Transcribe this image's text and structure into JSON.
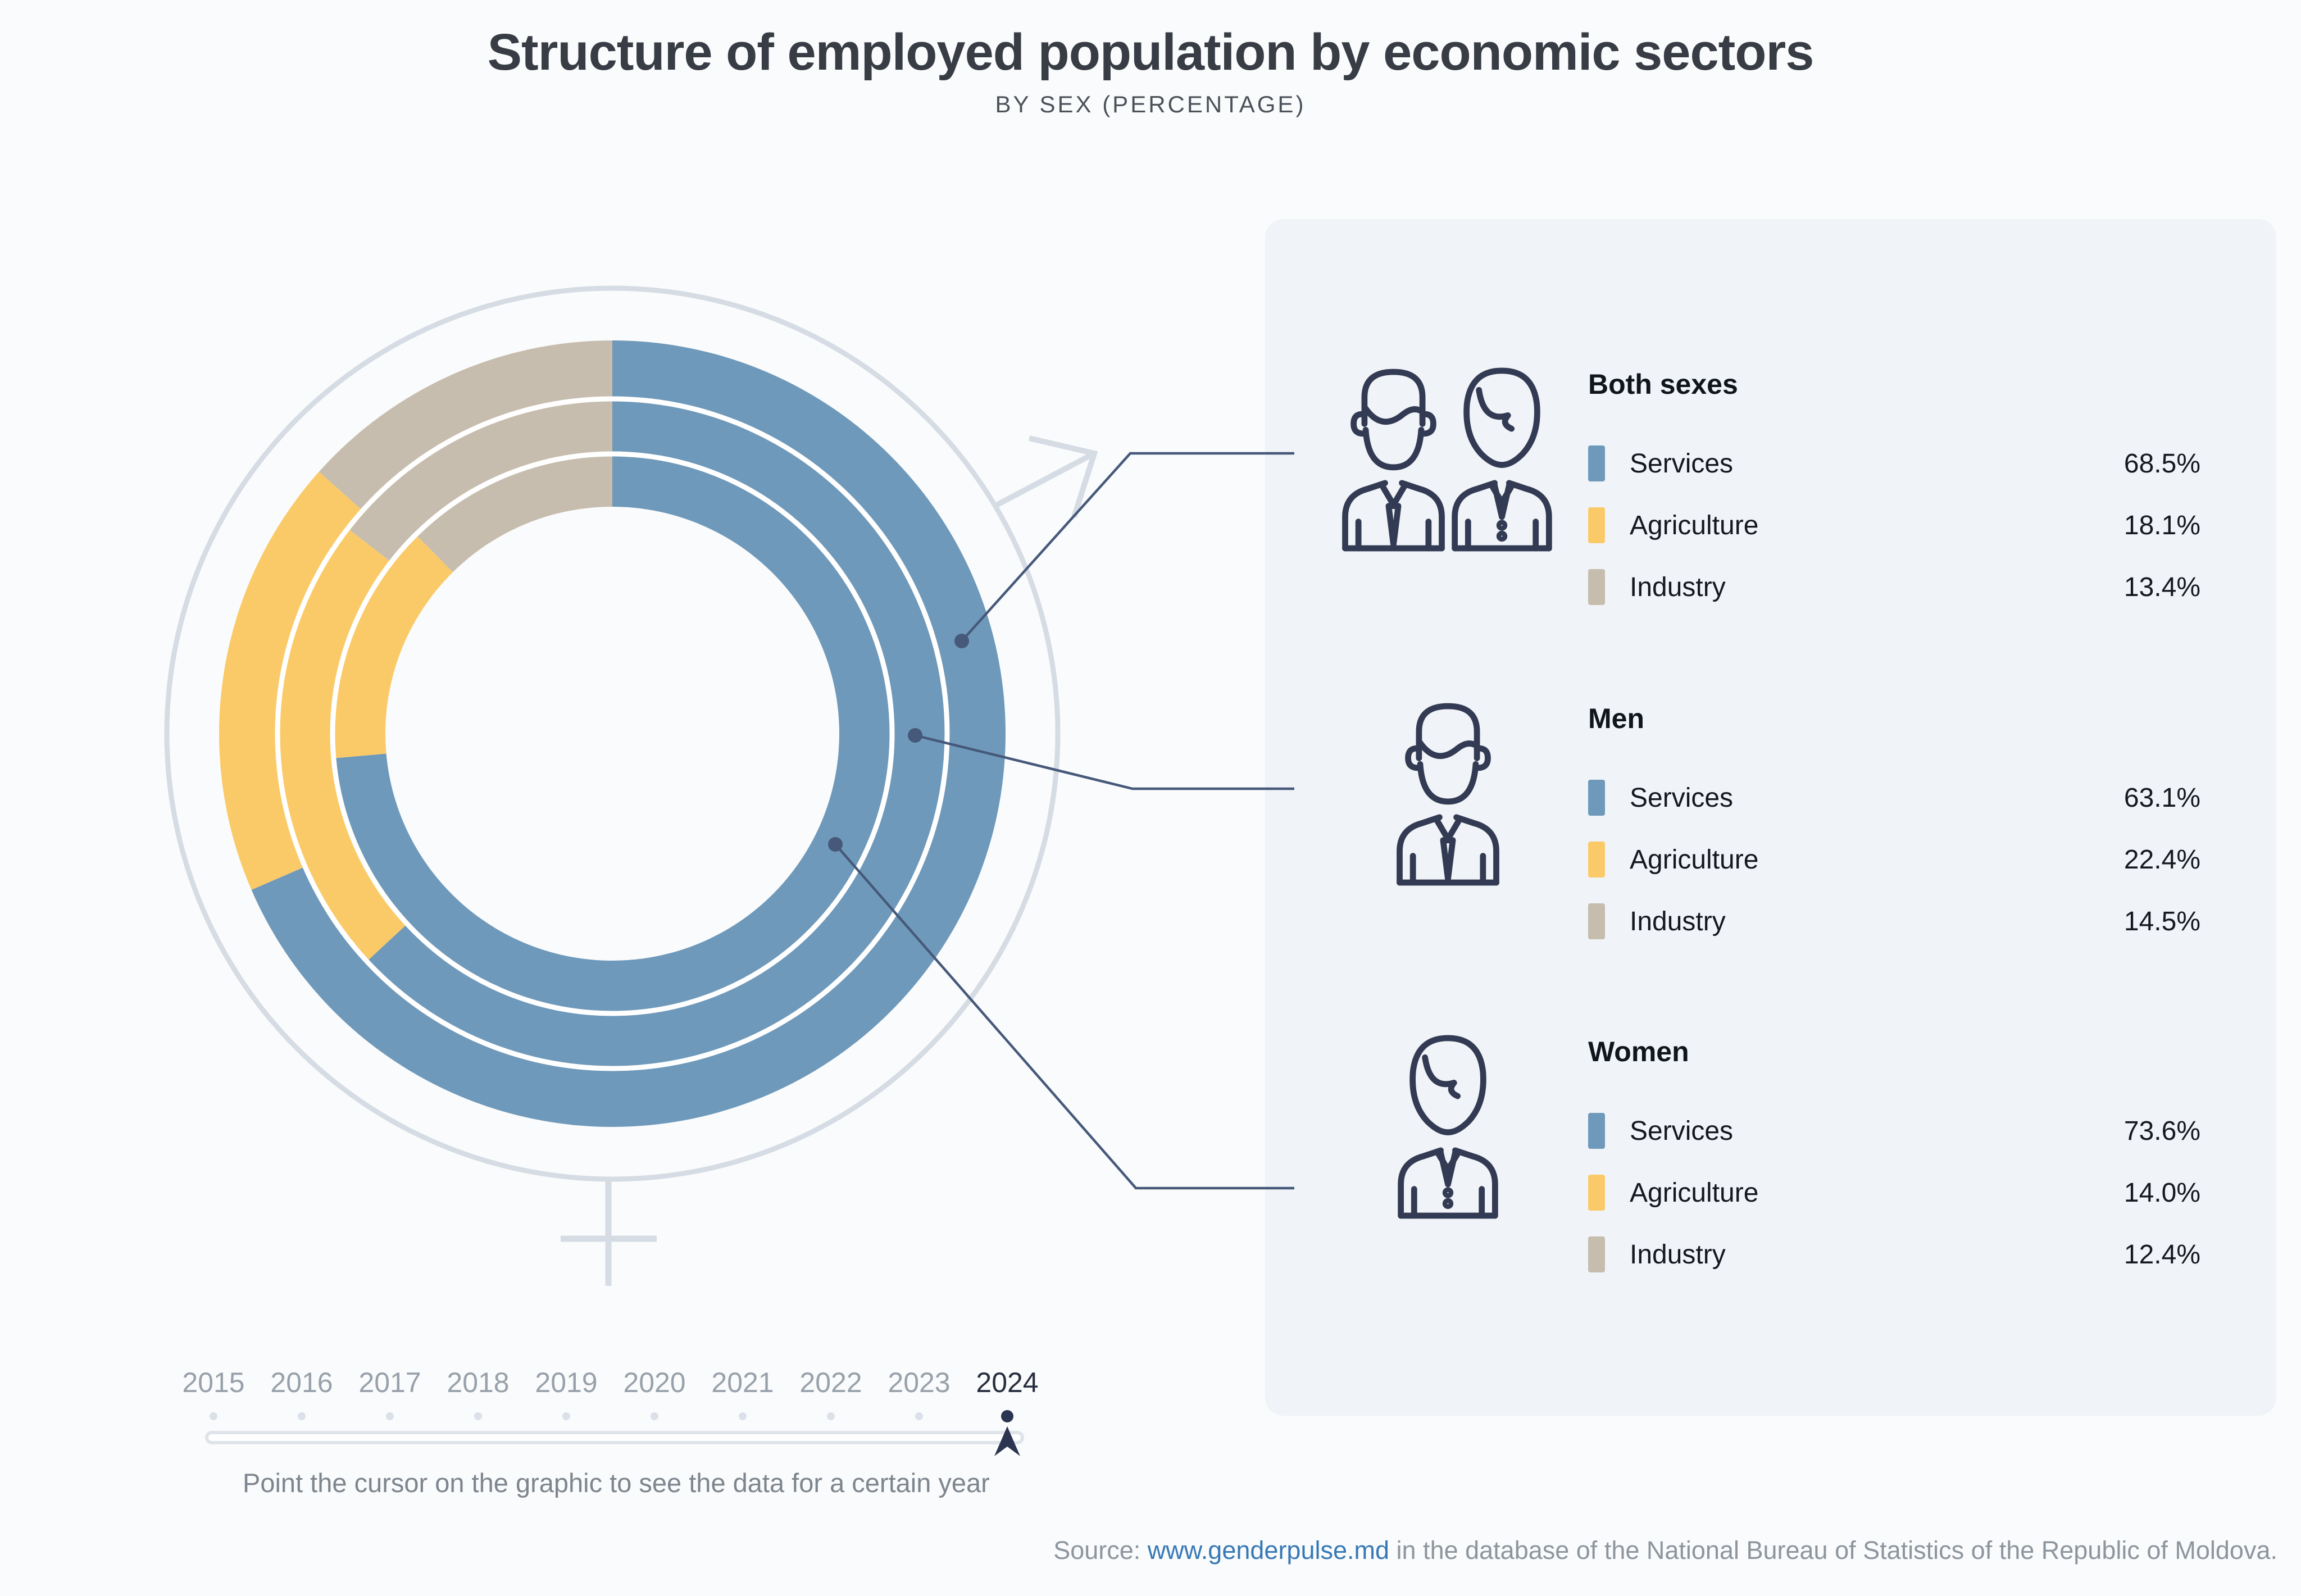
{
  "header": {
    "title": "Structure of employed population by economic sectors",
    "subtitle": "BY SEX (PERCENTAGE)"
  },
  "chart_data": {
    "type": "donut-multi-ring",
    "unit": "%",
    "legend_position": "right",
    "sectors": [
      {
        "label": "Services",
        "color": "#6f99ba"
      },
      {
        "label": "Agriculture",
        "color": "#fbca68"
      },
      {
        "label": "Industry",
        "color": "#c7bdae"
      }
    ],
    "rings": [
      {
        "label": "Both sexes",
        "icons": [
          "man",
          "woman"
        ],
        "values": [
          68.5,
          18.1,
          13.4
        ]
      },
      {
        "label": "Men",
        "icons": [
          "man"
        ],
        "values": [
          63.1,
          22.4,
          14.5
        ]
      },
      {
        "label": "Women",
        "icons": [
          "woman"
        ],
        "values": [
          73.6,
          14.0,
          12.4
        ]
      }
    ],
    "years": [
      "2015",
      "2016",
      "2017",
      "2018",
      "2019",
      "2020",
      "2021",
      "2022",
      "2023",
      "2024"
    ],
    "selected_year": "2024"
  },
  "ui": {
    "hint": "Point the cursor on the graphic to see the data for a certain year"
  },
  "source": {
    "prefix": "Source: ",
    "link": "www.genderpulse.md",
    "suffix": " in the database of the National Bureau of Statistics of the Republic of Moldova."
  }
}
